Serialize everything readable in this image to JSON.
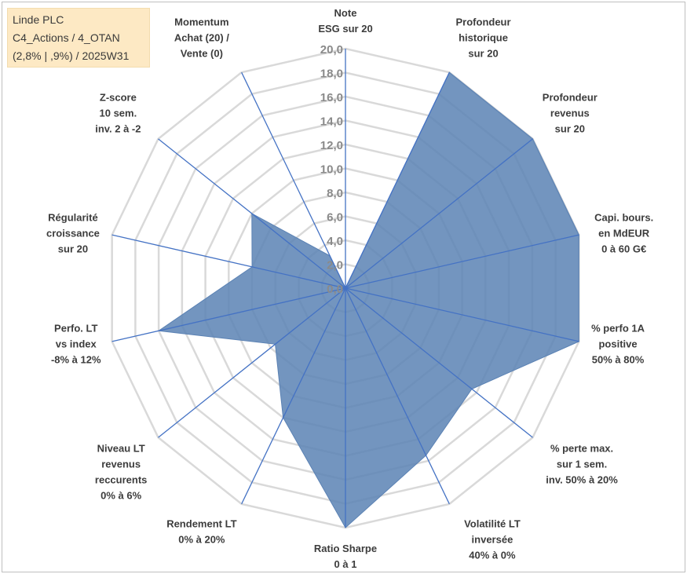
{
  "info_box": {
    "line1": "Linde PLC",
    "line2": "C4_Actions / 4_OTAN",
    "line3": "(2,8% | ,9%) / 2025W31"
  },
  "colors": {
    "fill": "#5b82b4",
    "spoke": "#4472c4",
    "grid": "#d9d9d9",
    "info_bg": "#fde9c4"
  },
  "chart_data": {
    "type": "radar",
    "rmin": 0,
    "rmax": 20,
    "tick_step": 2,
    "tick_labels": [
      "0,0",
      "2,0",
      "4,0",
      "6,0",
      "8,0",
      "10,0",
      "12,0",
      "14,0",
      "16,0",
      "18,0",
      "20,0"
    ],
    "axes": [
      {
        "label": [
          "Note",
          "ESG sur 20"
        ],
        "value": 0
      },
      {
        "label": [
          "Profondeur",
          "historique",
          "sur 20"
        ],
        "value": 20
      },
      {
        "label": [
          "Profondeur",
          "revenus",
          "sur 20"
        ],
        "value": 20
      },
      {
        "label": [
          "Capi. bours.",
          "en MdEUR",
          "0 à 60 G€"
        ],
        "value": 20
      },
      {
        "label": [
          "% perfo 1A",
          "positive",
          "50% à 80%"
        ],
        "value": 20
      },
      {
        "label": [
          "% perte max.",
          "sur 1 sem.",
          "inv. 50% à 20%"
        ],
        "value": 13.5
      },
      {
        "label": [
          "Volatilité LT",
          "inversée",
          "40% à 0%"
        ],
        "value": 15.5
      },
      {
        "label": [
          "Ratio Sharpe",
          "0 à 1"
        ],
        "value": 20
      },
      {
        "label": [
          "Rendement LT",
          "0% à 20%"
        ],
        "value": 12
      },
      {
        "label": [
          "Niveau LT",
          "revenus",
          "reccurents",
          "0% à 6%"
        ],
        "value": 7.5
      },
      {
        "label": [
          "Perfo. LT",
          "vs index",
          "-8% à 12%"
        ],
        "value": 16
      },
      {
        "label": [
          "Régularité",
          "croissance",
          "sur 20"
        ],
        "value": 8
      },
      {
        "label": [
          "Z-score",
          "10 sem.",
          "inv. 2 à -2"
        ],
        "value": 10
      },
      {
        "label": [
          "Momentum",
          "Achat (20) /",
          "Vente (0)"
        ],
        "value": 3
      }
    ]
  }
}
